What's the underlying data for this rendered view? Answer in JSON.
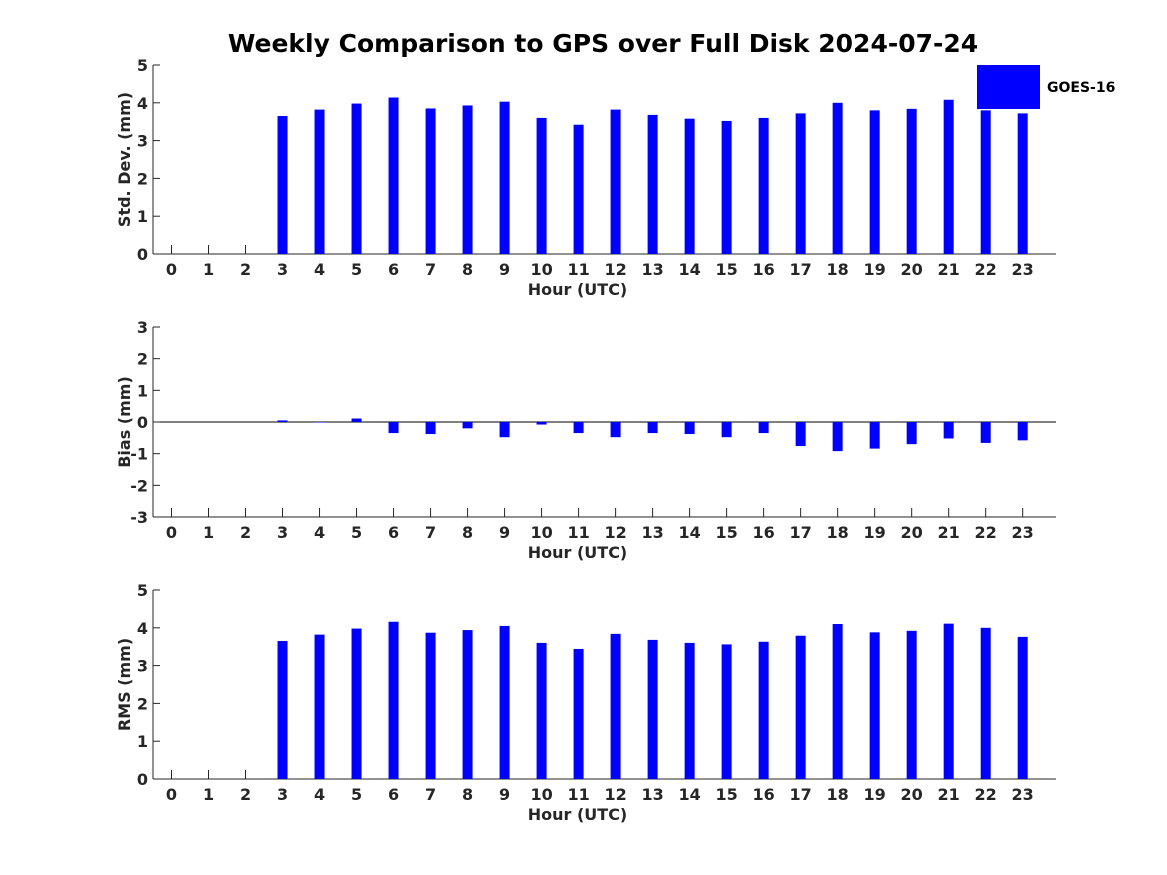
{
  "chart_data": [
    {
      "type": "bar",
      "title": "Weekly Comparison to GPS over Full Disk 2024-07-24",
      "xlabel": "Hour (UTC)",
      "ylabel": "Std. Dev. (mm)",
      "ylim": [
        0,
        5
      ],
      "yticks": [
        "0",
        "1",
        "2",
        "3",
        "4",
        "5"
      ],
      "categories": [
        "0",
        "1",
        "2",
        "3",
        "4",
        "5",
        "6",
        "7",
        "8",
        "9",
        "10",
        "11",
        "12",
        "13",
        "14",
        "15",
        "16",
        "17",
        "18",
        "19",
        "20",
        "21",
        "22",
        "23"
      ],
      "series": [
        {
          "name": "GOES-16",
          "color": "#0000ff",
          "values": [
            null,
            null,
            null,
            3.65,
            3.82,
            3.98,
            4.14,
            3.85,
            3.93,
            4.03,
            3.6,
            3.42,
            3.82,
            3.68,
            3.58,
            3.52,
            3.6,
            3.72,
            4.0,
            3.8,
            3.84,
            4.08,
            3.8,
            3.72
          ]
        }
      ],
      "legend": {
        "label": "GOES-16",
        "placement": "top-right"
      }
    },
    {
      "type": "bar",
      "title": "",
      "xlabel": "Hour (UTC)",
      "ylabel": "Bias (mm)",
      "ylim": [
        -3,
        3
      ],
      "yticks": [
        "-3",
        "-2",
        "-1",
        "0",
        "1",
        "2",
        "3"
      ],
      "zero_line": true,
      "categories": [
        "0",
        "1",
        "2",
        "3",
        "4",
        "5",
        "6",
        "7",
        "8",
        "9",
        "10",
        "11",
        "12",
        "13",
        "14",
        "15",
        "16",
        "17",
        "18",
        "19",
        "20",
        "21",
        "22",
        "23"
      ],
      "series": [
        {
          "name": "GOES-16",
          "color": "#0000ff",
          "values": [
            null,
            null,
            null,
            0.05,
            0.0,
            0.11,
            -0.35,
            -0.38,
            -0.2,
            -0.48,
            -0.08,
            -0.35,
            -0.48,
            -0.35,
            -0.38,
            -0.48,
            -0.35,
            -0.76,
            -0.92,
            -0.84,
            -0.7,
            -0.52,
            -0.66,
            -0.58
          ]
        }
      ]
    },
    {
      "type": "bar",
      "title": "",
      "xlabel": "Hour (UTC)",
      "ylabel": "RMS (mm)",
      "ylim": [
        0,
        5
      ],
      "yticks": [
        "0",
        "1",
        "2",
        "3",
        "4",
        "5"
      ],
      "categories": [
        "0",
        "1",
        "2",
        "3",
        "4",
        "5",
        "6",
        "7",
        "8",
        "9",
        "10",
        "11",
        "12",
        "13",
        "14",
        "15",
        "16",
        "17",
        "18",
        "19",
        "20",
        "21",
        "22",
        "23"
      ],
      "series": [
        {
          "name": "GOES-16",
          "color": "#0000ff",
          "values": [
            null,
            null,
            null,
            3.65,
            3.82,
            3.98,
            4.16,
            3.87,
            3.94,
            4.05,
            3.6,
            3.44,
            3.84,
            3.68,
            3.6,
            3.56,
            3.63,
            3.79,
            4.1,
            3.88,
            3.92,
            4.11,
            4.0,
            3.76
          ]
        }
      ]
    }
  ]
}
